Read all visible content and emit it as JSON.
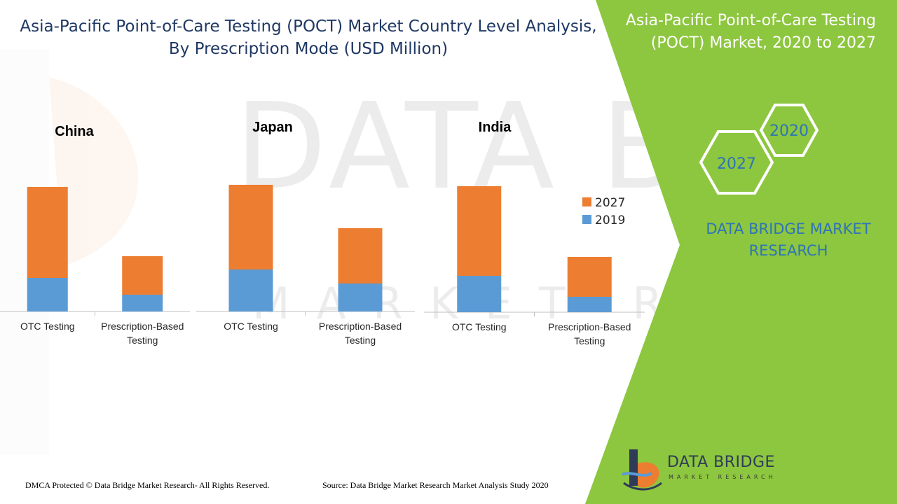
{
  "title": "Asia-Pacific Point-of-Care Testing (POCT) Market Country Level Analysis, By Prescription Mode (USD Million)",
  "side_panel": {
    "title": "Asia-Pacific Point-of-Care Testing (POCT) Market, 2020 to 2027",
    "hex_years": [
      "2020",
      "2027"
    ],
    "brand": "DATA BRIDGE MARKET RESEARCH",
    "color": "#8dc63f"
  },
  "watermark": {
    "text": "DATA BRIDGE",
    "subtext": "MARKET RESEARCH"
  },
  "legend": [
    "2027",
    "2019"
  ],
  "chart_data": [
    {
      "type": "bar",
      "stacked": true,
      "title": "China",
      "categories": [
        "OTC Testing",
        "Prescription-Based Testing"
      ],
      "series": [
        {
          "name": "2019",
          "color": "#5b9bd5",
          "values": [
            48,
            24
          ]
        },
        {
          "name": "2027",
          "color": "#ed7d31",
          "values": [
            130,
            55
          ]
        }
      ],
      "ylim": [
        0,
        200
      ]
    },
    {
      "type": "bar",
      "stacked": true,
      "title": "Japan",
      "categories": [
        "OTC Testing",
        "Prescription-Based Testing"
      ],
      "series": [
        {
          "name": "2019",
          "color": "#5b9bd5",
          "values": [
            60,
            40
          ]
        },
        {
          "name": "2027",
          "color": "#ed7d31",
          "values": [
            121,
            79
          ]
        }
      ],
      "ylim": [
        0,
        200
      ]
    },
    {
      "type": "bar",
      "stacked": true,
      "title": "India",
      "categories": [
        "OTC Testing",
        "Prescription-Based Testing"
      ],
      "series": [
        {
          "name": "2019",
          "color": "#5b9bd5",
          "values": [
            52,
            22
          ]
        },
        {
          "name": "2027",
          "color": "#ed7d31",
          "values": [
            128,
            57
          ]
        }
      ],
      "ylim": [
        0,
        200
      ]
    }
  ],
  "footer": {
    "dmca": "DMCA Protected © Data Bridge Market Research- All Rights Reserved.",
    "source": "Source: Data Bridge Market Research Market Analysis Study 2020"
  },
  "logo": {
    "name": "DATA BRIDGE",
    "tagline": "MARKET RESEARCH"
  }
}
